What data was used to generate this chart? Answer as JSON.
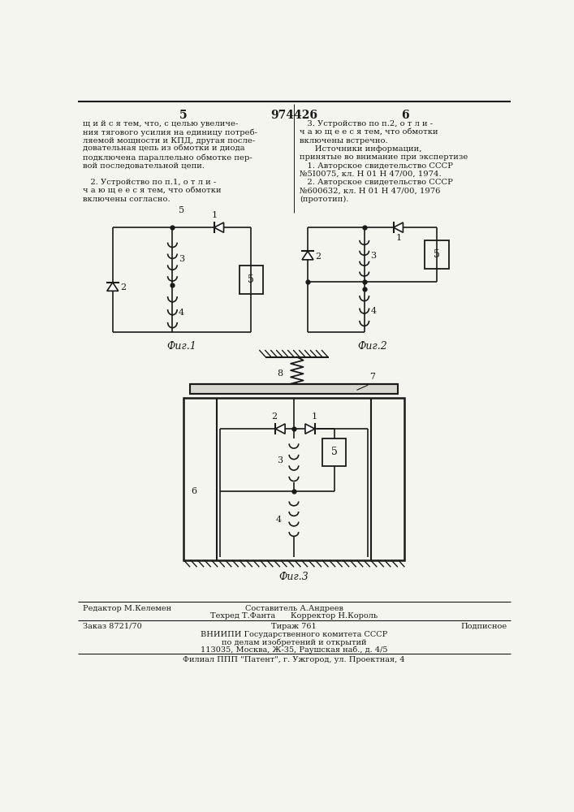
{
  "page_number_left": "5",
  "patent_number": "974426",
  "page_number_right": "6",
  "background_color": "#f5f5f0",
  "text_color": "#1a1a1a",
  "fig_width": 7.07,
  "fig_height": 10.0,
  "dpi": 100,
  "left_column_text": [
    "щ и й с я тем, что, с целью увеличе-",
    "ния тягового усилия на единицу потреб-",
    "ляемой мощности и КПД, другая после-",
    "довательная цепь из обмотки и диода",
    "подключена параллельно обмотке пер-",
    "вой последовательной цепи.",
    "",
    "   2. Устройство по п.1, о т л и -",
    "ч а ю щ е е с я тем, что обмотки",
    "включены согласно."
  ],
  "right_column_text": [
    "   3. Устройство по п.2, о т л и -",
    "ч а ю щ е е с я тем, что обмотки",
    "включены встречно.",
    "      Источники информации,",
    "принятые во внимание при экспертизе",
    "   1. Авторское свидетельство СССР",
    "№5І0075, кл. Н 01 Н 47/00, 1974.",
    "   2. Авторское свидетельство СССР",
    "№600632, кл. Н 01 Н 47/00, 1976",
    "(прототип)."
  ],
  "fig1_label": "Фиг.1",
  "fig2_label": "Фиг.2",
  "fig3_label": "Фиг.3"
}
